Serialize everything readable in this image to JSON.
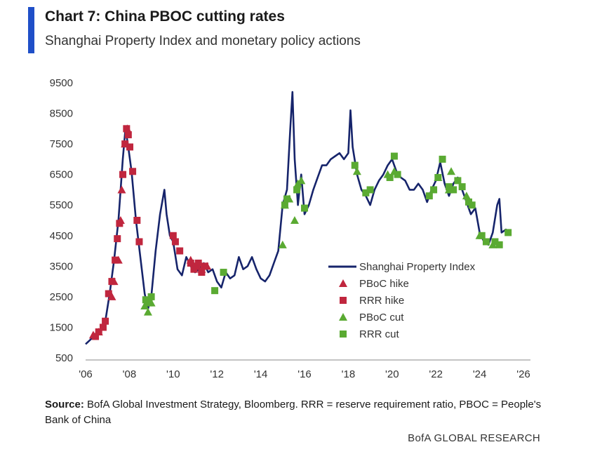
{
  "header": {
    "title": "Chart 7: China PBOC cutting rates",
    "subtitle": "Shanghai Property Index and monetary policy actions"
  },
  "footer": {
    "source_label": "Source:",
    "source_text": "BofA Global Investment Strategy, Bloomberg. RRR = reserve requirement ratio, PBOC = People's Bank of China",
    "brand": "BofA GLOBAL RESEARCH"
  },
  "colors": {
    "index_line": "#16246b",
    "hike": "#c0263e",
    "cut": "#5aaa32",
    "accent": "#1f4fc8"
  },
  "chart_data": {
    "type": "line",
    "title": "Chart 7: China PBOC cutting rates",
    "subtitle": "Shanghai Property Index and monetary policy actions",
    "xlabel": "",
    "ylabel": "",
    "xlim": [
      2006,
      2026
    ],
    "ylim": [
      500,
      9500
    ],
    "x_ticks": [
      2006,
      2008,
      2010,
      2012,
      2014,
      2016,
      2018,
      2020,
      2022,
      2024,
      2026
    ],
    "x_tick_labels": [
      "'06",
      "'08",
      "'10",
      "'12",
      "'14",
      "'16",
      "'18",
      "'20",
      "'22",
      "'24",
      "'26"
    ],
    "y_ticks": [
      500,
      1500,
      2500,
      3500,
      4500,
      5500,
      6500,
      7500,
      8500,
      9500
    ],
    "y_tick_labels": [
      "500",
      "1500",
      "2500",
      "3500",
      "4500",
      "5500",
      "6500",
      "7500",
      "8500",
      "9500"
    ],
    "grid": false,
    "legend_position": "center-right",
    "legend": [
      "Shanghai Property Index",
      "PBoC hike",
      "RRR hike",
      "PBoC cut",
      "RRR cut"
    ],
    "series": [
      {
        "name": "Shanghai Property Index",
        "style": "line",
        "x": [
          2006.0,
          2006.3,
          2006.6,
          2006.9,
          2007.1,
          2007.3,
          2007.5,
          2007.7,
          2007.82,
          2007.95,
          2008.1,
          2008.3,
          2008.5,
          2008.7,
          2008.85,
          2009.0,
          2009.2,
          2009.4,
          2009.6,
          2009.7,
          2009.85,
          2010.0,
          2010.2,
          2010.4,
          2010.6,
          2010.8,
          2011.0,
          2011.2,
          2011.4,
          2011.6,
          2011.8,
          2012.0,
          2012.2,
          2012.4,
          2012.6,
          2012.8,
          2013.0,
          2013.2,
          2013.4,
          2013.6,
          2013.8,
          2014.0,
          2014.2,
          2014.4,
          2014.6,
          2014.8,
          2015.0,
          2015.2,
          2015.35,
          2015.45,
          2015.55,
          2015.7,
          2015.85,
          2016.0,
          2016.2,
          2016.4,
          2016.6,
          2016.8,
          2017.0,
          2017.2,
          2017.4,
          2017.6,
          2017.8,
          2018.0,
          2018.1,
          2018.2,
          2018.4,
          2018.6,
          2018.8,
          2019.0,
          2019.2,
          2019.4,
          2019.6,
          2019.8,
          2020.0,
          2020.2,
          2020.4,
          2020.6,
          2020.8,
          2021.0,
          2021.2,
          2021.4,
          2021.6,
          2021.8,
          2022.0,
          2022.2,
          2022.4,
          2022.6,
          2022.8,
          2023.0,
          2023.2,
          2023.4,
          2023.6,
          2023.8,
          2024.0,
          2024.2,
          2024.4,
          2024.6,
          2024.8,
          2024.9,
          2025.0,
          2025.2,
          2025.4
        ],
        "y": [
          950,
          1150,
          1350,
          1700,
          2600,
          3700,
          5000,
          7000,
          8000,
          7400,
          6600,
          5000,
          3800,
          2600,
          2100,
          2500,
          4000,
          5200,
          6000,
          5200,
          4500,
          4300,
          3400,
          3200,
          3800,
          3500,
          3300,
          3400,
          3600,
          3300,
          3400,
          3000,
          2800,
          3300,
          3100,
          3200,
          3800,
          3400,
          3500,
          3800,
          3400,
          3100,
          3000,
          3200,
          3600,
          4000,
          5500,
          6000,
          8000,
          9200,
          7000,
          5500,
          6500,
          5200,
          5500,
          6000,
          6400,
          6800,
          6800,
          7000,
          7100,
          7200,
          7000,
          7200,
          8600,
          7400,
          6500,
          6000,
          5800,
          5500,
          6000,
          6300,
          6500,
          6800,
          7000,
          6600,
          6400,
          6300,
          6000,
          6000,
          6200,
          6000,
          5600,
          6000,
          6300,
          6900,
          6200,
          5800,
          6200,
          6400,
          6000,
          5600,
          5200,
          5400,
          4600,
          4300,
          4200,
          4600,
          5500,
          5700,
          4600,
          4700,
          4600
        ]
      },
      {
        "name": "PBoC hike",
        "style": "triangle",
        "x": [
          2006.35,
          2006.6,
          2007.2,
          2007.3,
          2007.5,
          2007.6,
          2007.65,
          2007.8,
          2007.9,
          2010.8,
          2011.1,
          2011.3,
          2011.55
        ],
        "y": [
          1250,
          1350,
          2500,
          3000,
          3700,
          5000,
          6000,
          7500,
          8000,
          3700,
          3500,
          3400,
          3500
        ]
      },
      {
        "name": "RRR hike",
        "style": "square",
        "x": [
          2006.45,
          2006.6,
          2006.8,
          2006.9,
          2007.05,
          2007.2,
          2007.35,
          2007.45,
          2007.55,
          2007.7,
          2007.8,
          2007.87,
          2007.95,
          2008.02,
          2008.15,
          2008.35,
          2008.45,
          2010.0,
          2010.1,
          2010.3,
          2010.8,
          2010.95,
          2011.05,
          2011.15,
          2011.3,
          2011.45
        ],
        "y": [
          1200,
          1350,
          1500,
          1700,
          2600,
          3000,
          3700,
          4400,
          4900,
          6500,
          7500,
          8000,
          7800,
          7400,
          6600,
          5000,
          4300,
          4500,
          4300,
          4000,
          3600,
          3400,
          3500,
          3600,
          3300,
          3500
        ]
      },
      {
        "name": "PBoC cut",
        "style": "triangle",
        "x": [
          2008.7,
          2008.85,
          2009.0,
          2015.0,
          2015.1,
          2015.3,
          2015.55,
          2015.7,
          2015.85,
          2018.4,
          2019.8,
          2020.1,
          2022.1,
          2022.6,
          2022.7,
          2023.4,
          2024.0,
          2024.6
        ],
        "y": [
          2200,
          2000,
          2300,
          4200,
          5500,
          5700,
          5000,
          6200,
          6300,
          6600,
          6500,
          6600,
          6400,
          6000,
          6600,
          5800,
          4500,
          4200
        ]
      },
      {
        "name": "RRR cut",
        "style": "square",
        "x": [
          2008.75,
          2008.9,
          2009.0,
          2011.9,
          2012.3,
          2015.1,
          2015.2,
          2015.65,
          2016.0,
          2018.3,
          2018.8,
          2019.0,
          2019.9,
          2020.1,
          2020.25,
          2021.7,
          2021.9,
          2022.1,
          2022.3,
          2022.6,
          2022.8,
          2023.0,
          2023.2,
          2023.5,
          2023.65,
          2024.1,
          2024.3,
          2024.7,
          2024.9,
          2025.3
        ],
        "y": [
          2400,
          2300,
          2500,
          2700,
          3300,
          5500,
          5700,
          6000,
          5400,
          6800,
          5900,
          6000,
          6400,
          7100,
          6500,
          5800,
          6000,
          6400,
          7000,
          6100,
          6000,
          6300,
          6100,
          5600,
          5500,
          4500,
          4300,
          4300,
          4200,
          4600
        ]
      }
    ]
  }
}
